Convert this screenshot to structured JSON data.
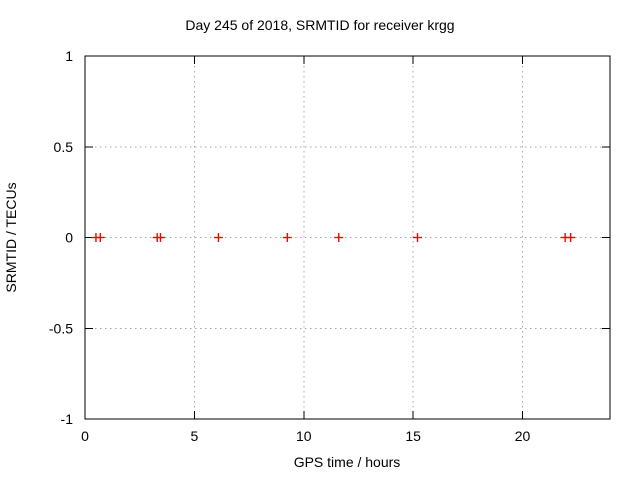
{
  "chart_data": {
    "type": "scatter",
    "title": "Day 245 of 2018, SRMTID for receiver krgg",
    "xlabel": "GPS time / hours",
    "ylabel": "SRMTID / TECUs",
    "xlim": [
      0,
      24
    ],
    "ylim": [
      -1,
      1
    ],
    "xticks": [
      0,
      5,
      10,
      15,
      20
    ],
    "xtick_labels": [
      "0",
      "5",
      "10",
      "15",
      "20"
    ],
    "yticks": [
      -1,
      -0.5,
      0,
      0.5,
      1
    ],
    "ytick_labels": [
      "-1",
      "-0.5",
      "0",
      "0.5",
      "1"
    ],
    "grid": true,
    "legend": "none",
    "colors": {
      "background": "#ffffff",
      "frame": "#000000",
      "grid": "#a6a6a6",
      "marker": "#ff0000",
      "text": "#000000"
    },
    "series": [
      {
        "name": "SRMTID",
        "marker": "plus",
        "color": "#ff0000",
        "points": [
          [
            0.5,
            0
          ],
          [
            0.7,
            0
          ],
          [
            3.3,
            0
          ],
          [
            3.45,
            0
          ],
          [
            6.1,
            0
          ],
          [
            9.25,
            0
          ],
          [
            11.6,
            0
          ],
          [
            15.2,
            0
          ],
          [
            21.95,
            0
          ],
          [
            22.2,
            0
          ]
        ]
      }
    ]
  }
}
